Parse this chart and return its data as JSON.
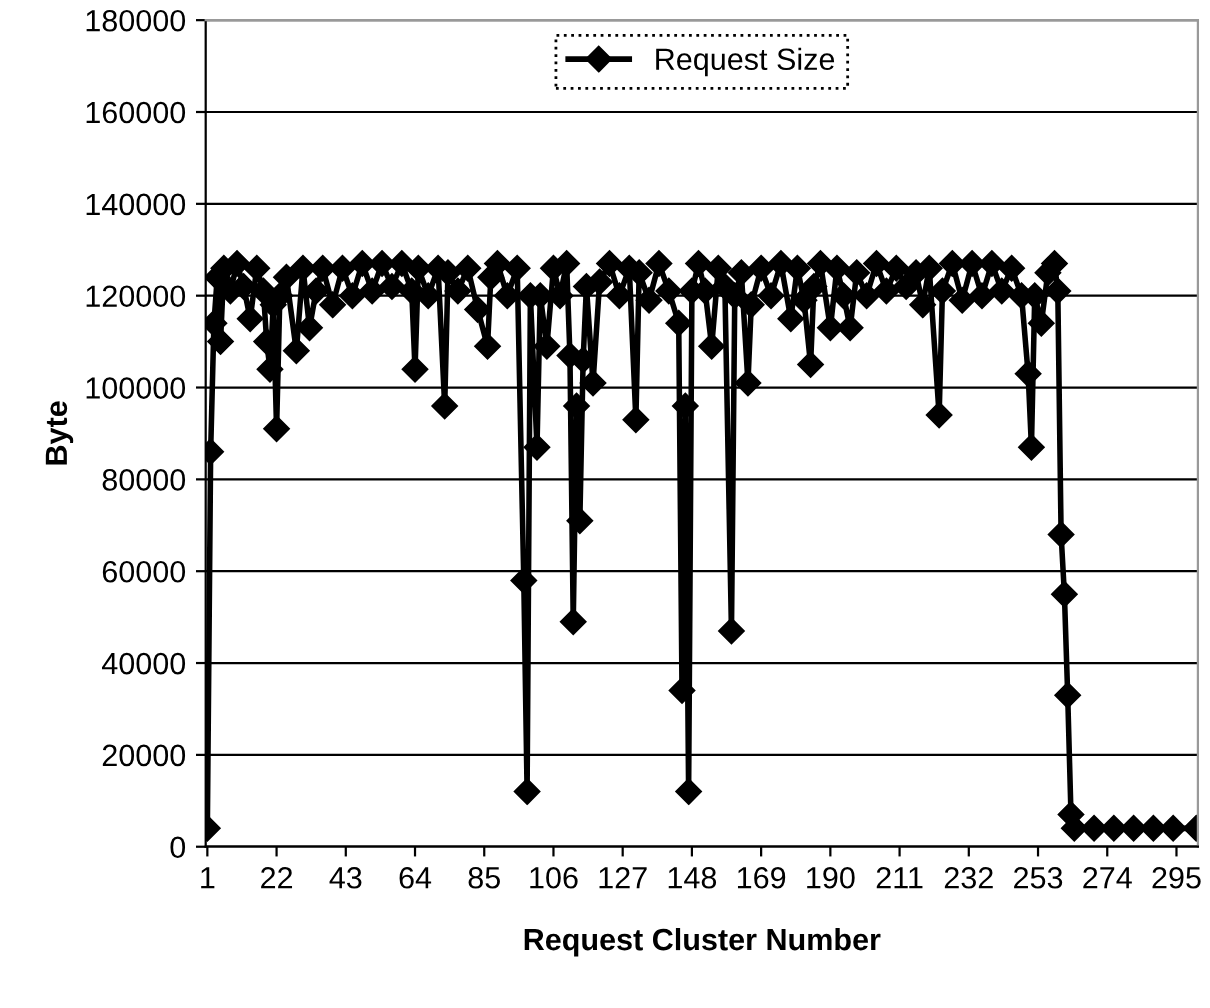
{
  "chart_data": {
    "type": "line",
    "xlabel": "Request Cluster Number",
    "ylabel": "Byte",
    "xlim": [
      0.5,
      301.5
    ],
    "xticks": [
      1,
      22,
      43,
      64,
      85,
      106,
      127,
      148,
      169,
      190,
      211,
      232,
      253,
      274,
      295
    ],
    "ylim": [
      0,
      180000
    ],
    "yticks": [
      0,
      20000,
      40000,
      60000,
      80000,
      100000,
      120000,
      140000,
      160000,
      180000
    ],
    "grid": "y",
    "legend": "top",
    "marker": "diamond",
    "line_style": "solid",
    "series": [
      {
        "name": "Request Size",
        "color": "#000000",
        "x": [
          1,
          2,
          3,
          4,
          5,
          6,
          8,
          10,
          12,
          14,
          16,
          18,
          19,
          20,
          21,
          22,
          23,
          25,
          28,
          30,
          32,
          34,
          36,
          39,
          42,
          45,
          48,
          51,
          54,
          57,
          60,
          63,
          64,
          65,
          68,
          71,
          73,
          74,
          77,
          80,
          83,
          86,
          87,
          89,
          92,
          95,
          97,
          98,
          99,
          101,
          102,
          104,
          106,
          108,
          110,
          111,
          112,
          113,
          114,
          115,
          116,
          118,
          120,
          123,
          126,
          129,
          131,
          132,
          135,
          138,
          141,
          144,
          145,
          146,
          147,
          148,
          150,
          152,
          154,
          156,
          158,
          160,
          161,
          163,
          165,
          166,
          169,
          172,
          175,
          178,
          180,
          182,
          184,
          185,
          187,
          190,
          192,
          194,
          196,
          198,
          201,
          204,
          207,
          210,
          213,
          216,
          218,
          220,
          223,
          224,
          227,
          230,
          233,
          236,
          239,
          242,
          245,
          248,
          250,
          251,
          252,
          254,
          256,
          258,
          259,
          260,
          261,
          262,
          263,
          264,
          270,
          276,
          282,
          288,
          294,
          301
        ],
        "values": [
          4000,
          86000,
          114000,
          124000,
          110000,
          126000,
          121000,
          127000,
          122000,
          115000,
          126000,
          121000,
          110000,
          104000,
          118000,
          91000,
          120000,
          124000,
          108000,
          126000,
          113000,
          121000,
          126000,
          118000,
          126000,
          120000,
          127000,
          121000,
          127000,
          122000,
          127000,
          121000,
          104000,
          126000,
          120000,
          126000,
          96000,
          125000,
          121000,
          126000,
          117000,
          109000,
          124000,
          127000,
          120000,
          126000,
          58000,
          12000,
          120000,
          87000,
          120000,
          109000,
          126000,
          120000,
          127000,
          107000,
          49000,
          96000,
          71000,
          106000,
          122000,
          101000,
          123000,
          127000,
          120000,
          126000,
          93000,
          125000,
          119000,
          127000,
          121000,
          114000,
          34000,
          96000,
          12000,
          121000,
          127000,
          121000,
          109000,
          126000,
          122000,
          47000,
          120000,
          125000,
          101000,
          118000,
          126000,
          120000,
          127000,
          115000,
          126000,
          119000,
          105000,
          122000,
          127000,
          113000,
          126000,
          120000,
          113000,
          125000,
          120000,
          127000,
          121000,
          126000,
          122000,
          125000,
          118000,
          126000,
          94000,
          121000,
          127000,
          119000,
          127000,
          120000,
          127000,
          121000,
          126000,
          120000,
          103000,
          87000,
          120000,
          114000,
          125000,
          127000,
          121000,
          68000,
          55000,
          33000,
          7000,
          4000,
          4000,
          4000,
          4000,
          4000,
          4000,
          4000
        ]
      }
    ]
  }
}
